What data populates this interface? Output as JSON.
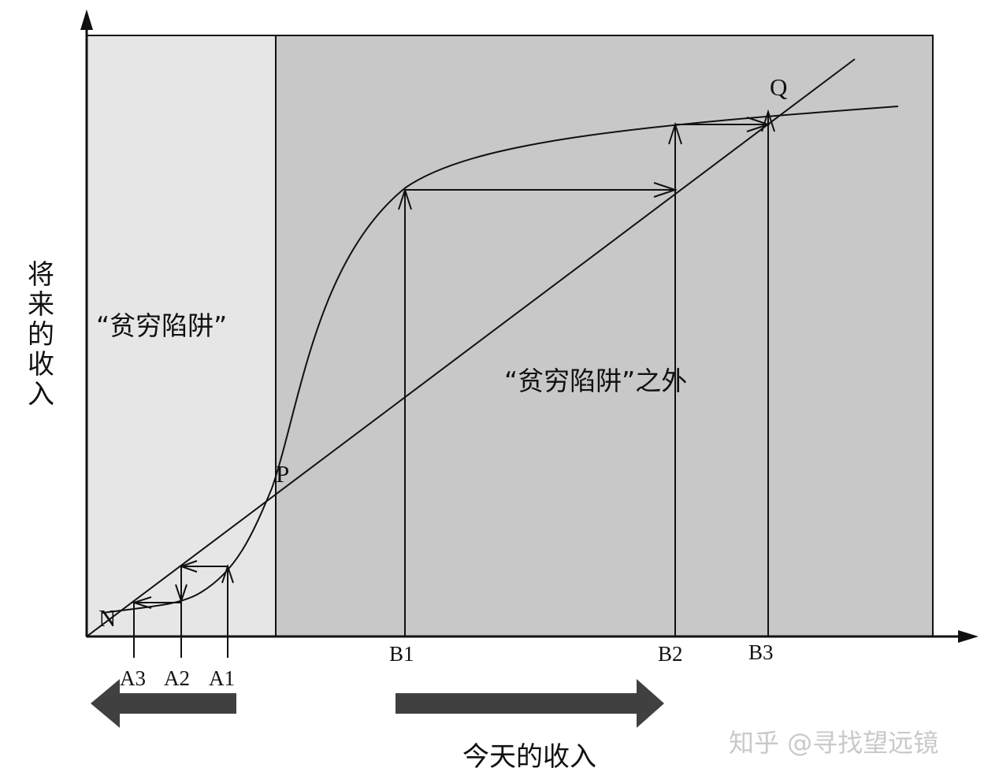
{
  "diagram": {
    "region_left_label": "“贫穷陷阱”",
    "region_right_label": "“贫穷陷阱”之外",
    "y_axis_title": "将来的收入",
    "x_axis_title": "今天的收入",
    "points": {
      "n": "N",
      "p": "P",
      "q": "Q"
    },
    "ticks": {
      "a3": "A3",
      "a2": "A2",
      "a1": "A1",
      "b1": "B1",
      "b2": "B2",
      "b3": "B3"
    },
    "watermark": "知乎 @寻找望远镜",
    "colors": {
      "trap_region": "#e6e6e6",
      "outside_region": "#c8c8c8",
      "lines": "#111111",
      "big_arrows": "#404040"
    }
  }
}
